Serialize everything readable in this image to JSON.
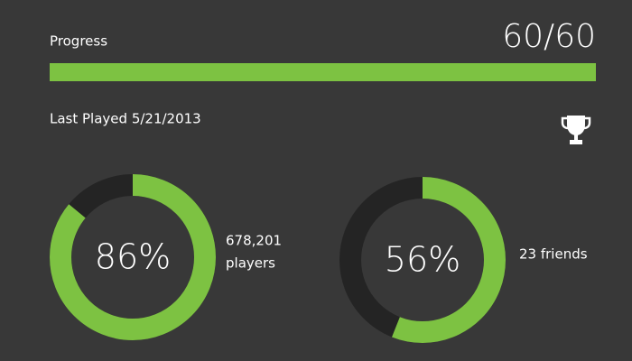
{
  "progress": {
    "label": "Progress",
    "value_label": "60/60",
    "current": 60,
    "total": 60
  },
  "last_played": "Last Played 5/21/2013",
  "stats": [
    {
      "percent": 86,
      "value_label": "86%",
      "caption": [
        "678,201",
        "players"
      ]
    },
    {
      "percent": 56,
      "value_label": "56%",
      "caption": [
        "23 friends"
      ]
    }
  ]
}
